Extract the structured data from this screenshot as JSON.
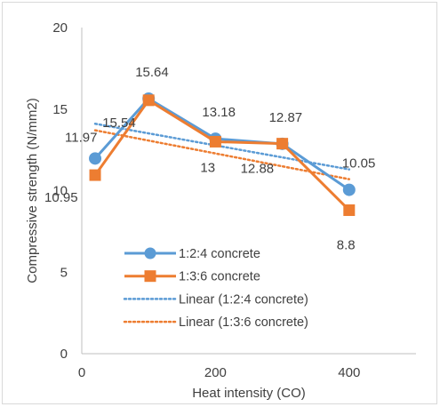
{
  "chart_data": {
    "type": "line",
    "title": "",
    "xlabel": "Heat intensity (CO)",
    "ylabel": "Compressive strength (N/mm2)",
    "xlim": [
      0,
      500
    ],
    "ylim": [
      0,
      20
    ],
    "xticks": [
      0,
      200,
      400
    ],
    "yticks": [
      0,
      5,
      10,
      15,
      20
    ],
    "grid": false,
    "legend_position": "bottom-left inside plot",
    "series": [
      {
        "name": "1:2:4 concrete",
        "color": "#5b9bd5",
        "marker": "circle",
        "x": [
          20,
          100,
          200,
          300,
          400
        ],
        "values": [
          11.97,
          15.64,
          13.18,
          12.87,
          10.05
        ],
        "labels": [
          "11.97",
          "15.64",
          "13.18",
          "12.87",
          "10.05"
        ]
      },
      {
        "name": "1:3:6 concrete",
        "color": "#ed7d31",
        "marker": "square",
        "x": [
          20,
          100,
          200,
          300,
          400
        ],
        "values": [
          10.95,
          15.54,
          13,
          12.88,
          8.8
        ],
        "labels": [
          "10.95",
          "15.54",
          "13",
          "12.88",
          "8.8"
        ]
      }
    ],
    "trendlines": [
      {
        "name": "Linear (1:2:4 concrete)",
        "color": "#5b9bd5",
        "style": "dotted",
        "x": [
          20,
          400
        ],
        "values": [
          14.1,
          11.3
        ]
      },
      {
        "name": "Linear (1:3:6 concrete)",
        "color": "#ed7d31",
        "style": "dotted",
        "x": [
          20,
          400
        ],
        "values": [
          13.7,
          10.7
        ]
      }
    ]
  }
}
